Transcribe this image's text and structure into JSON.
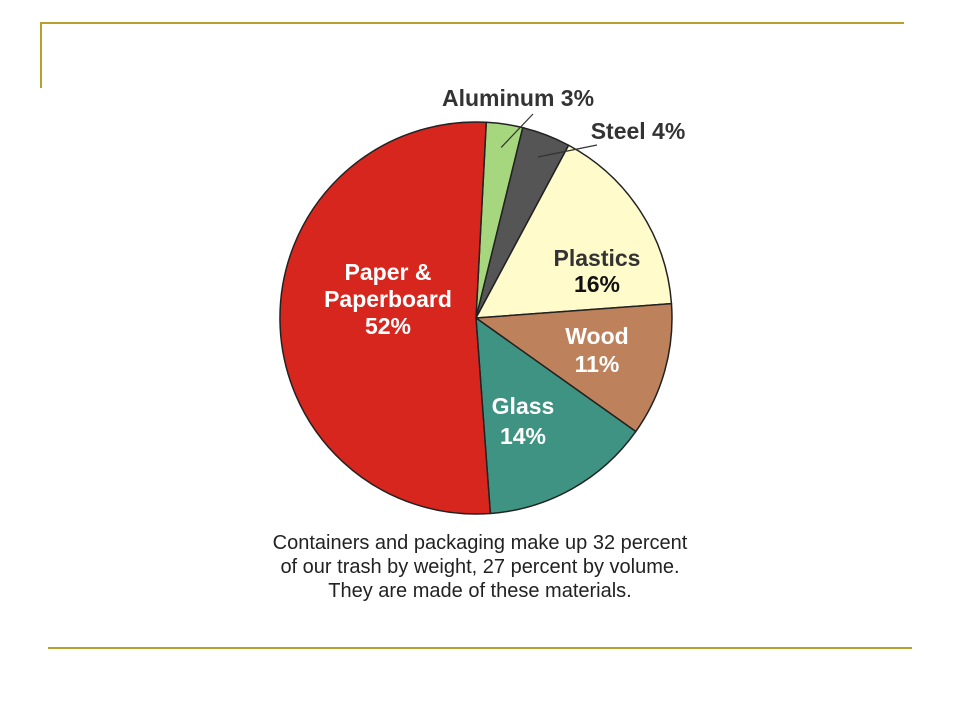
{
  "chart_data": {
    "type": "pie",
    "title": "",
    "start_angle_deg": 3,
    "slices": [
      {
        "name": "Aluminum",
        "value_label": "3%",
        "value": 3,
        "color": "#a6d67e"
      },
      {
        "name": "Steel",
        "value_label": "4%",
        "value": 4,
        "color": "#555555"
      },
      {
        "name": "Plastics",
        "value_label": "16%",
        "value": 16,
        "color": "#fffbca"
      },
      {
        "name": "Wood",
        "value_label": "11%",
        "value": 11,
        "color": "#bd825c"
      },
      {
        "name": "Glass",
        "value_label": "14%",
        "value": 14,
        "color": "#3f9382"
      },
      {
        "name": "Paper & Paperboard",
        "value_label": "52%",
        "value": 52,
        "color": "#d7261e"
      }
    ],
    "labels": [
      {
        "lines": [
          "Aluminum 3%"
        ],
        "color": "#333333",
        "callout": true
      },
      {
        "lines": [
          "Steel 4%"
        ],
        "color": "#333333",
        "callout": true
      },
      {
        "lines": [
          "Plastics",
          "16%"
        ],
        "color": "#333333",
        "callout": false
      },
      {
        "lines": [
          "Wood",
          "11%"
        ],
        "color": "#ffffff",
        "callout": false
      },
      {
        "lines": [
          "Glass",
          "14%"
        ],
        "color": "#ffffff",
        "callout": false
      },
      {
        "lines": [
          "Paper &",
          "Paperboard",
          "52%"
        ],
        "color": "#ffffff",
        "callout": false
      }
    ],
    "caption": [
      "Containers and packaging make up 32 percent",
      "of our trash by weight, 27 percent by volume.",
      "They are made of these materials."
    ]
  },
  "theme": {
    "frame_color": "#b8a12a",
    "outline_color": "#222222"
  }
}
